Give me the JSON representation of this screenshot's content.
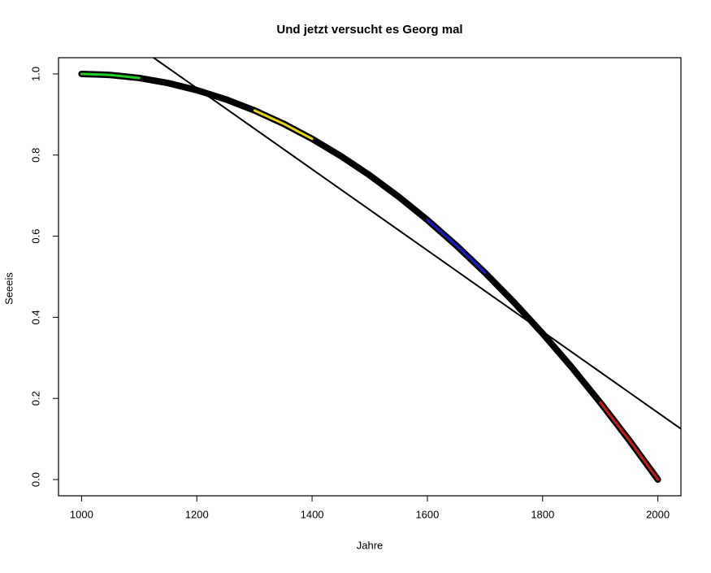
{
  "chart_data": {
    "type": "line",
    "title": "Und jetzt versucht es Georg mal",
    "x_label": "Jahre",
    "y_label": "Seeeis",
    "xlim": [
      960,
      2040
    ],
    "ylim": [
      -0.04,
      1.04
    ],
    "xticks": [
      1000,
      1200,
      1400,
      1600,
      1800,
      2000
    ],
    "yticks": [
      {
        "value": 0,
        "label": "0.0"
      },
      {
        "value": 0.2,
        "label": "0.2"
      },
      {
        "value": 0.4,
        "label": "0.4"
      },
      {
        "value": 0.6,
        "label": "0.6"
      },
      {
        "value": 0.8,
        "label": "0.8"
      },
      {
        "value": 1,
        "label": "1.0"
      }
    ],
    "grid": false,
    "series": [
      {
        "color": "#000000",
        "width": 8,
        "x": [
          1000,
          1050,
          1100,
          1150,
          1200,
          1250,
          1300,
          1350,
          1400,
          1450,
          1500,
          1550,
          1600,
          1650,
          1700,
          1750,
          1800,
          1850,
          1900,
          1950,
          2000
        ],
        "values": [
          1,
          0.9975,
          0.99,
          0.9775,
          0.96,
          0.9375,
          0.91,
          0.8775,
          0.84,
          0.7975,
          0.75,
          0.6975,
          0.64,
          0.5775,
          0.51,
          0.4375,
          0.36,
          0.2775,
          0.19,
          0.0975,
          0
        ]
      },
      {
        "color": "#000000",
        "width": 2,
        "x": [
          1125,
          2040
        ],
        "values": [
          1.04,
          0.125
        ]
      },
      {
        "color": "#22cc22",
        "width": 3,
        "x": [
          1000,
          1050,
          1100
        ],
        "values": [
          1,
          0.9975,
          0.99
        ]
      },
      {
        "color": "#e6d800",
        "width": 3,
        "x": [
          1300,
          1350,
          1400
        ],
        "values": [
          0.91,
          0.8775,
          0.84
        ]
      },
      {
        "color": "#1a1acc",
        "width": 3,
        "x": [
          1600,
          1650,
          1700
        ],
        "values": [
          0.64,
          0.5775,
          0.51
        ]
      },
      {
        "color": "#cc1a1a",
        "width": 3,
        "x": [
          1900,
          1950,
          2000
        ],
        "values": [
          0.19,
          0.0975,
          0
        ]
      }
    ]
  }
}
